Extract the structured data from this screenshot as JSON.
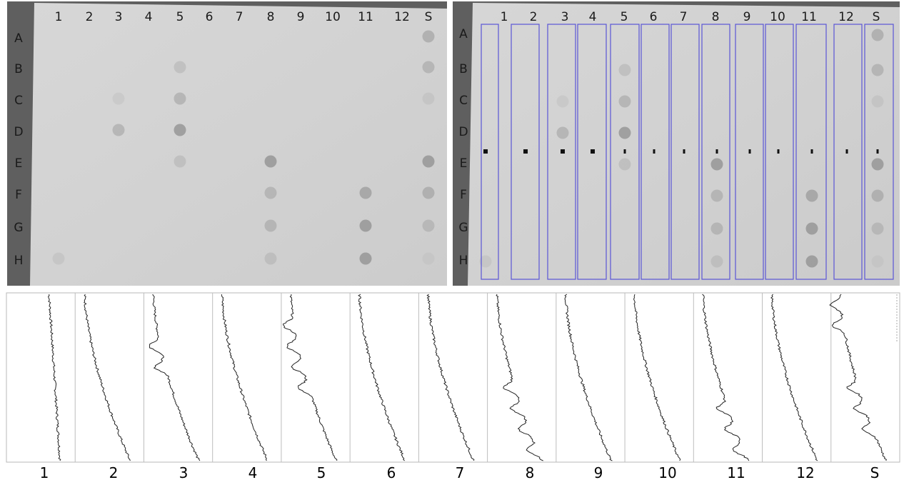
{
  "left_panel": {
    "columns": [
      "1",
      "2",
      "3",
      "4",
      "5",
      "6",
      "7",
      "8",
      "9",
      "10",
      "11",
      "12",
      "S"
    ],
    "rows": [
      "A",
      "B",
      "C",
      "D",
      "E",
      "F",
      "G",
      "H"
    ],
    "spots": [
      {
        "row": "A",
        "col": "S",
        "intensity": 0.5
      },
      {
        "row": "B",
        "col": "5",
        "intensity": 0.3
      },
      {
        "row": "B",
        "col": "S",
        "intensity": 0.45
      },
      {
        "row": "C",
        "col": "3",
        "intensity": 0.15
      },
      {
        "row": "C",
        "col": "5",
        "intensity": 0.45
      },
      {
        "row": "C",
        "col": "S",
        "intensity": 0.2
      },
      {
        "row": "D",
        "col": "3",
        "intensity": 0.45
      },
      {
        "row": "D",
        "col": "5",
        "intensity": 0.7
      },
      {
        "row": "E",
        "col": "5",
        "intensity": 0.3
      },
      {
        "row": "E",
        "col": "8",
        "intensity": 0.7
      },
      {
        "row": "E",
        "col": "S",
        "intensity": 0.7
      },
      {
        "row": "F",
        "col": "8",
        "intensity": 0.45
      },
      {
        "row": "F",
        "col": "11",
        "intensity": 0.6
      },
      {
        "row": "F",
        "col": "S",
        "intensity": 0.5
      },
      {
        "row": "G",
        "col": "8",
        "intensity": 0.45
      },
      {
        "row": "G",
        "col": "11",
        "intensity": 0.7
      },
      {
        "row": "G",
        "col": "S",
        "intensity": 0.4
      },
      {
        "row": "H",
        "col": "1",
        "intensity": 0.2
      },
      {
        "row": "H",
        "col": "8",
        "intensity": 0.3
      },
      {
        "row": "H",
        "col": "11",
        "intensity": 0.7
      },
      {
        "row": "H",
        "col": "S",
        "intensity": 0.15
      }
    ]
  },
  "right_panel": {
    "columns": [
      "1",
      "2",
      "3",
      "4",
      "5",
      "6",
      "7",
      "8",
      "9",
      "10",
      "11",
      "12",
      "S"
    ],
    "rows": [
      "A",
      "B",
      "C",
      "D",
      "E",
      "F",
      "G",
      "H"
    ],
    "lane_box_color": "#5a55d6",
    "marker_row": "E"
  },
  "profiles": {
    "labels": [
      "1",
      "2",
      "3",
      "4",
      "5",
      "6",
      "7",
      "8",
      "9",
      "10",
      "11",
      "12",
      "S"
    ],
    "peaks": {
      "1": [],
      "2": [],
      "3": [
        "C",
        "D"
      ],
      "4": [],
      "5": [
        "B",
        "C",
        "D",
        "E"
      ],
      "6": [],
      "7": [],
      "8": [
        "E",
        "F",
        "G",
        "H"
      ],
      "9": [],
      "10": [],
      "11": [
        "F",
        "G",
        "H"
      ],
      "12": [],
      "S": [
        "A",
        "B",
        "E",
        "F",
        "G"
      ]
    }
  }
}
